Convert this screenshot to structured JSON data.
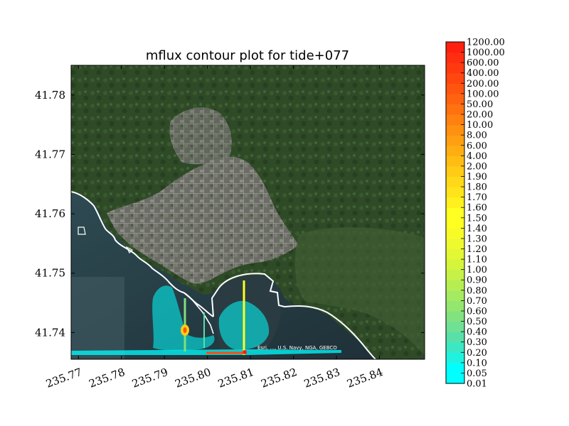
{
  "chart_data": {
    "type": "contour",
    "title": "mflux contour plot for tide+077",
    "xlim": [
      235.7683,
      235.8505
    ],
    "ylim": [
      41.7355,
      41.785
    ],
    "x_ticks": [
      "235.77",
      "235.78",
      "235.79",
      "235.80",
      "235.81",
      "235.82",
      "235.83",
      "235.84"
    ],
    "x_tick_values": [
      235.77,
      235.78,
      235.79,
      235.8,
      235.81,
      235.82,
      235.83,
      235.84
    ],
    "y_ticks": [
      "41.74",
      "41.75",
      "41.76",
      "41.77",
      "41.78"
    ],
    "y_tick_values": [
      41.74,
      41.75,
      41.76,
      41.77,
      41.78
    ],
    "background": "satellite imagery",
    "attribution": "Esri, ..., U.S. Navy, NGA, GEBCO",
    "colorbar": {
      "levels": [
        "0.01",
        "0.05",
        "0.10",
        "0.20",
        "0.30",
        "0.40",
        "0.50",
        "0.60",
        "0.70",
        "0.80",
        "0.90",
        "1.00",
        "1.10",
        "1.20",
        "1.30",
        "1.40",
        "1.50",
        "1.60",
        "1.70",
        "1.80",
        "1.90",
        "2.00",
        "4.00",
        "6.00",
        "8.00",
        "10.00",
        "20.00",
        "50.00",
        "100.00",
        "200.00",
        "400.00",
        "600.00",
        "1000.00",
        "1200.00"
      ],
      "colors": [
        "#00ffff",
        "#00ffff",
        "#1ff3e0",
        "#3ce8c4",
        "#58e0a8",
        "#70e095",
        "#82e280",
        "#93e66e",
        "#a5ea60",
        "#b6ee52",
        "#c6f146",
        "#d5f53c",
        "#e2f834",
        "#eef92e",
        "#f8fb28",
        "#ffff20",
        "#ffff22",
        "#fff01e",
        "#ffe41b",
        "#ffd818",
        "#ffcc15",
        "#ffbd13",
        "#ffae12",
        "#ff9f11",
        "#ff9010",
        "#ff8110",
        "#ff720f",
        "#ff630f",
        "#ff550f",
        "#ff470f",
        "#ff3a0f",
        "#ff2e10",
        "#ff2010"
      ]
    },
    "coastline_color": "#ffffff",
    "contour_colors": {
      "low": "#00ffff",
      "mid": "#ffff20",
      "high": "#ff2a10"
    }
  }
}
